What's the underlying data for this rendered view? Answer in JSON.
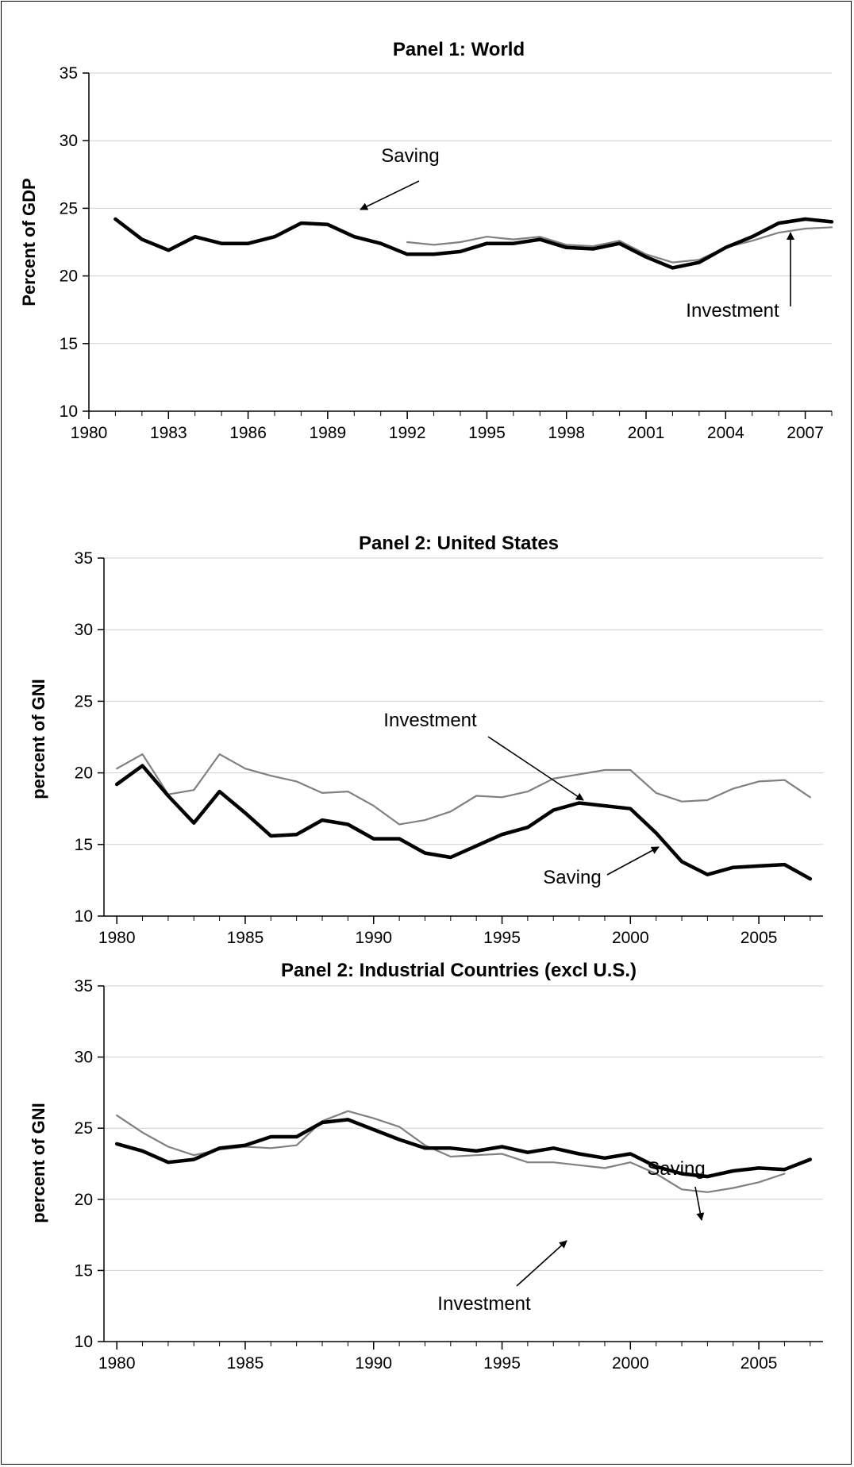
{
  "chart_data": [
    {
      "type": "line",
      "title": "Panel 1: World",
      "ylabel": "Percent of GDP",
      "xlabel": "",
      "ylim": [
        10,
        35
      ],
      "yticks": [
        10,
        15,
        20,
        25,
        30,
        35
      ],
      "xlim": [
        1980,
        2008
      ],
      "xticks": [
        1980,
        1983,
        1986,
        1989,
        1992,
        1995,
        1998,
        2001,
        2004,
        2007
      ],
      "grid": true,
      "series": [
        {
          "name": "Saving",
          "color": "#000000",
          "x": [
            1981,
            1982,
            1983,
            1984,
            1985,
            1986,
            1987,
            1988,
            1989,
            1990,
            1991,
            1992,
            1993,
            1994,
            1995,
            1996,
            1997,
            1998,
            1999,
            2000,
            2001,
            2002,
            2003,
            2004,
            2005,
            2006,
            2007,
            2008
          ],
          "y": [
            24.2,
            22.7,
            21.9,
            22.9,
            22.4,
            22.4,
            22.9,
            23.9,
            23.8,
            22.9,
            22.4,
            21.6,
            21.6,
            21.8,
            22.4,
            22.4,
            22.7,
            22.1,
            22.0,
            22.4,
            21.4,
            20.6,
            21.0,
            22.1,
            22.9,
            23.9,
            24.2,
            24.0
          ]
        },
        {
          "name": "Investment",
          "color": "#808080",
          "x": [
            1992,
            1993,
            1994,
            1995,
            1996,
            1997,
            1998,
            1999,
            2000,
            2001,
            2002,
            2003,
            2004,
            2005,
            2006,
            2007,
            2008
          ],
          "y": [
            22.5,
            22.3,
            22.5,
            22.9,
            22.7,
            22.9,
            22.3,
            22.2,
            22.6,
            21.6,
            21.0,
            21.2,
            22.1,
            22.6,
            23.2,
            23.5,
            23.6
          ]
        }
      ],
      "annotations": [
        {
          "text": "Saving",
          "target": "Saving"
        },
        {
          "text": "Investment",
          "target": "Investment"
        }
      ]
    },
    {
      "type": "line",
      "title": "Panel 2: United States",
      "ylabel": "percent of GNI",
      "xlabel": "",
      "ylim": [
        10,
        35
      ],
      "yticks": [
        10,
        15,
        20,
        25,
        30,
        35
      ],
      "xlim": [
        1979.5,
        2007.5
      ],
      "xticks": [
        1980,
        1985,
        1990,
        1995,
        2000,
        2005
      ],
      "grid": true,
      "series": [
        {
          "name": "Saving",
          "color": "#000000",
          "x": [
            1980,
            1981,
            1982,
            1983,
            1984,
            1985,
            1986,
            1987,
            1988,
            1989,
            1990,
            1991,
            1992,
            1993,
            1994,
            1995,
            1996,
            1997,
            1998,
            1999,
            2000,
            2001,
            2002,
            2003,
            2004,
            2005,
            2006,
            2007
          ],
          "y": [
            19.2,
            20.5,
            18.4,
            16.5,
            18.7,
            17.2,
            15.6,
            15.7,
            16.7,
            16.4,
            15.4,
            15.4,
            14.4,
            14.1,
            14.9,
            15.7,
            16.2,
            17.4,
            17.9,
            17.7,
            17.5,
            15.8,
            13.8,
            12.9,
            13.4,
            13.5,
            13.6,
            12.6
          ]
        },
        {
          "name": "Investment",
          "color": "#808080",
          "x": [
            1980,
            1981,
            1982,
            1983,
            1984,
            1985,
            1986,
            1987,
            1988,
            1989,
            1990,
            1991,
            1992,
            1993,
            1994,
            1995,
            1996,
            1997,
            1998,
            1999,
            2000,
            2001,
            2002,
            2003,
            2004,
            2005,
            2006,
            2007
          ],
          "y": [
            20.3,
            21.3,
            18.5,
            18.8,
            21.3,
            20.3,
            19.8,
            19.4,
            18.6,
            18.7,
            17.7,
            16.4,
            16.7,
            17.3,
            18.4,
            18.3,
            18.7,
            19.6,
            19.9,
            20.2,
            20.2,
            18.6,
            18.0,
            18.1,
            18.9,
            19.4,
            19.5,
            18.3
          ]
        }
      ],
      "annotations": [
        {
          "text": "Investment",
          "target": "Investment"
        },
        {
          "text": "Saving",
          "target": "Saving"
        }
      ]
    },
    {
      "type": "line",
      "title": "Panel 2: Industrial Countries (excl U.S.)",
      "ylabel": "percent of GNI",
      "xlabel": "",
      "ylim": [
        10,
        35
      ],
      "yticks": [
        10,
        15,
        20,
        25,
        30,
        35
      ],
      "xlim": [
        1979.5,
        2007.5
      ],
      "xticks": [
        1980,
        1985,
        1990,
        1995,
        2000,
        2005
      ],
      "grid": true,
      "series": [
        {
          "name": "Saving",
          "color": "#000000",
          "x": [
            1980,
            1981,
            1982,
            1983,
            1984,
            1985,
            1986,
            1987,
            1988,
            1989,
            1990,
            1991,
            1992,
            1993,
            1994,
            1995,
            1996,
            1997,
            1998,
            1999,
            2000,
            2001,
            2002,
            2003,
            2004,
            2005,
            2006,
            2007
          ],
          "y": [
            23.9,
            23.4,
            22.6,
            22.8,
            23.6,
            23.8,
            24.4,
            24.4,
            25.4,
            25.6,
            24.9,
            24.2,
            23.6,
            23.6,
            23.4,
            23.7,
            23.3,
            23.6,
            23.2,
            22.9,
            23.2,
            22.3,
            21.8,
            21.6,
            22.0,
            22.2,
            22.1,
            22.8
          ]
        },
        {
          "name": "Investment",
          "color": "#808080",
          "x": [
            1980,
            1981,
            1982,
            1983,
            1984,
            1985,
            1986,
            1987,
            1988,
            1989,
            1990,
            1991,
            1992,
            1993,
            1994,
            1995,
            1996,
            1997,
            1998,
            1999,
            2000,
            2001,
            2002,
            2003,
            2004,
            2005,
            2006
          ],
          "y": [
            25.9,
            24.7,
            23.7,
            23.1,
            23.5,
            23.7,
            23.6,
            23.8,
            25.5,
            26.2,
            25.7,
            25.1,
            23.8,
            23.0,
            23.1,
            23.2,
            22.6,
            22.6,
            22.4,
            22.2,
            22.6,
            21.8,
            20.7,
            20.5,
            20.8,
            21.2,
            21.8
          ]
        }
      ],
      "annotations": [
        {
          "text": "Saving",
          "target": "Saving"
        },
        {
          "text": "Investment",
          "target": "Investment"
        }
      ]
    }
  ]
}
